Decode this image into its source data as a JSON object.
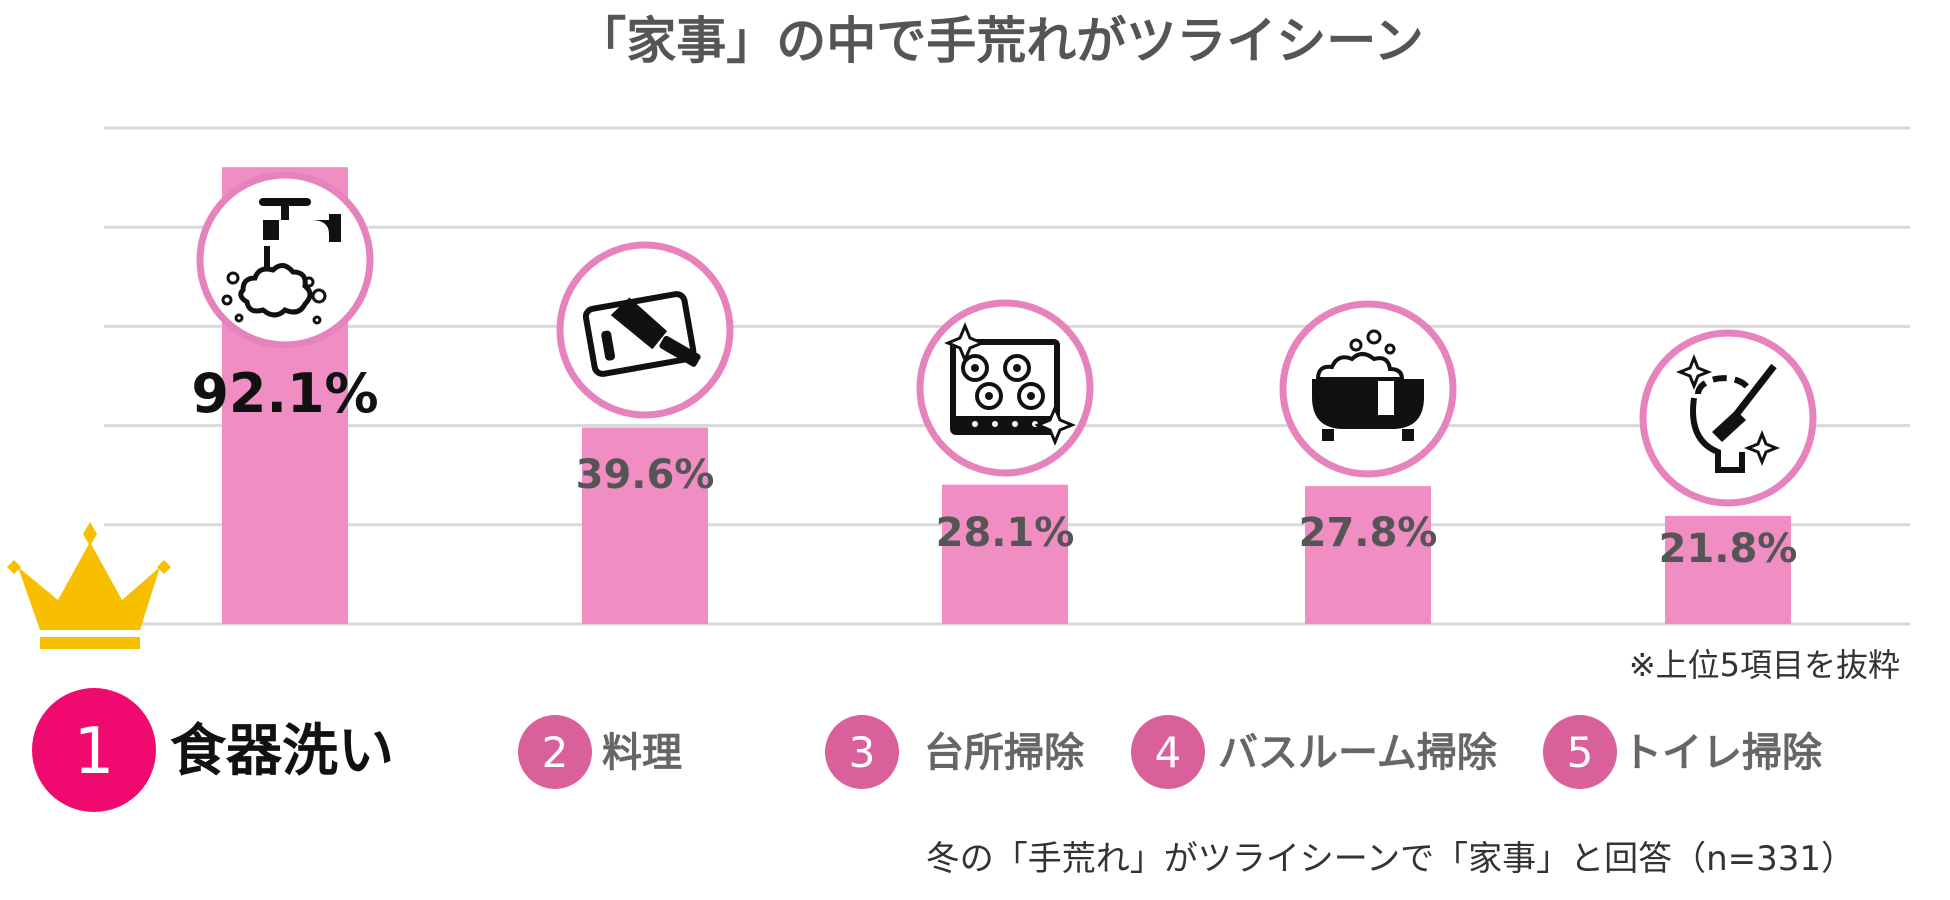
{
  "chart_data": {
    "type": "bar",
    "title": "「家事」の中で手荒れがツライシーン",
    "categories": [
      "食器洗い",
      "料理",
      "台所掃除",
      "バスルーム掃除",
      "トイレ掃除"
    ],
    "values": [
      92.1,
      39.6,
      28.1,
      27.8,
      21.8
    ],
    "value_labels": [
      "92.1%",
      "39.6%",
      "28.1%",
      "27.8%",
      "21.8%"
    ],
    "ranks": [
      "1",
      "2",
      "3",
      "4",
      "5"
    ],
    "icons": [
      "faucet-washing-icon",
      "cutting-board-knife-icon",
      "gas-stove-icon",
      "bathtub-icon",
      "toilet-brush-icon"
    ],
    "ylim": [
      0,
      100
    ],
    "grid": true,
    "note": "※上位5項目を抜粋",
    "source": "冬の「手荒れ」がツライシーンで「家事」と回答（n=331）",
    "colors": {
      "bar": "#F08EC3",
      "circle_stroke": "#E683BC",
      "rank1": "#F0096E",
      "rank_other": "#D9609A",
      "crown": "#F8BF00",
      "grid": "#D9D9D9"
    }
  }
}
